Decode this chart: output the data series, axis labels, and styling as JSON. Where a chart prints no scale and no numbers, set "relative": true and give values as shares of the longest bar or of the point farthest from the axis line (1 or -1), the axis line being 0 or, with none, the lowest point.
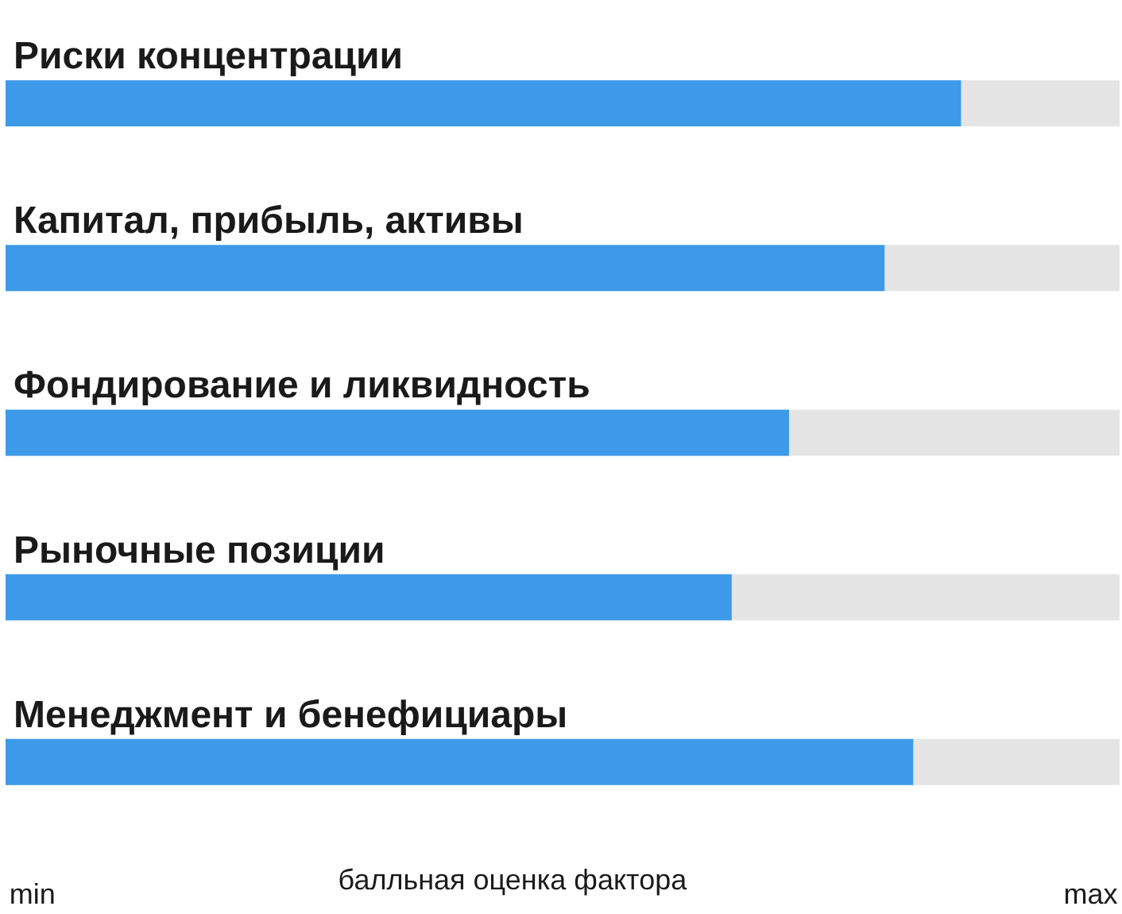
{
  "chart_data": {
    "type": "bar",
    "orientation": "horizontal",
    "relative": true,
    "categories": [
      "Риски концентрации",
      "Капитал, прибыль, активы",
      "Фондирование и ликвидность",
      "Рыночные позиции",
      "Менеджмент и бенефициары"
    ],
    "values": [
      1,
      0.92,
      0.82,
      0.76,
      0.95
    ],
    "color": "#3d9ae8",
    "xlabel": "балльная оценка фактора",
    "annotations": [
      "min",
      "max"
    ]
  }
}
